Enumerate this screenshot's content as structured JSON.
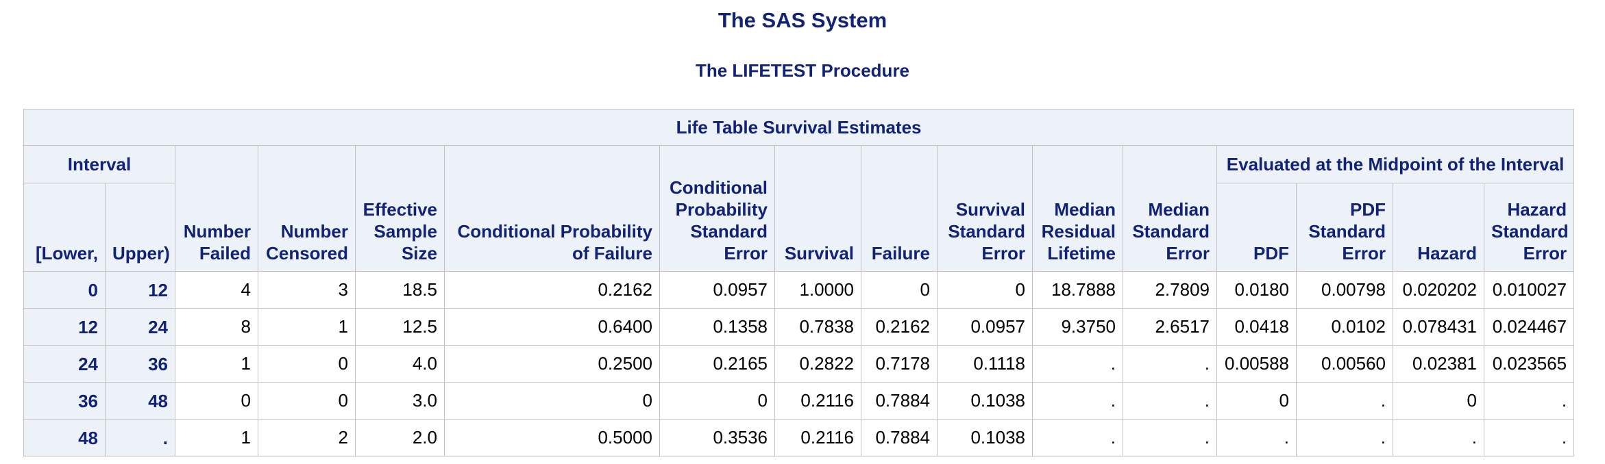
{
  "header": {
    "title": "The SAS System",
    "subtitle": "The LIFETEST Procedure"
  },
  "table": {
    "caption": "Life Table Survival Estimates",
    "group_interval": "Interval",
    "group_midpoint": "Evaluated at the Midpoint of the Interval",
    "columns": [
      "[Lower,",
      "Upper)",
      "Number\nFailed",
      "Number\nCensored",
      "Effective\nSample\nSize",
      "Conditional Probability\nof Failure",
      "Conditional\nProbability\nStandard\nError",
      "Survival",
      "Failure",
      "Survival\nStandard\nError",
      "Median\nResidual\nLifetime",
      "Median\nStandard\nError",
      "PDF",
      "PDF\nStandard\nError",
      "Hazard",
      "Hazard\nStandard\nError"
    ],
    "rows": [
      [
        "0",
        "12",
        "4",
        "3",
        "18.5",
        "0.2162",
        "0.0957",
        "1.0000",
        "0",
        "0",
        "18.7888",
        "2.7809",
        "0.0180",
        "0.00798",
        "0.020202",
        "0.010027"
      ],
      [
        "12",
        "24",
        "8",
        "1",
        "12.5",
        "0.6400",
        "0.1358",
        "0.7838",
        "0.2162",
        "0.0957",
        "9.3750",
        "2.6517",
        "0.0418",
        "0.0102",
        "0.078431",
        "0.024467"
      ],
      [
        "24",
        "36",
        "1",
        "0",
        "4.0",
        "0.2500",
        "0.2165",
        "0.2822",
        "0.7178",
        "0.1118",
        ".",
        ".",
        "0.00588",
        "0.00560",
        "0.02381",
        "0.023565"
      ],
      [
        "36",
        "48",
        "0",
        "0",
        "3.0",
        "0",
        "0",
        "0.2116",
        "0.7884",
        "0.1038",
        ".",
        ".",
        "0",
        ".",
        "0",
        "."
      ],
      [
        "48",
        ".",
        "1",
        "2",
        "2.0",
        "0.5000",
        "0.3536",
        "0.2116",
        "0.7884",
        "0.1038",
        ".",
        ".",
        ".",
        ".",
        ".",
        "."
      ]
    ]
  }
}
